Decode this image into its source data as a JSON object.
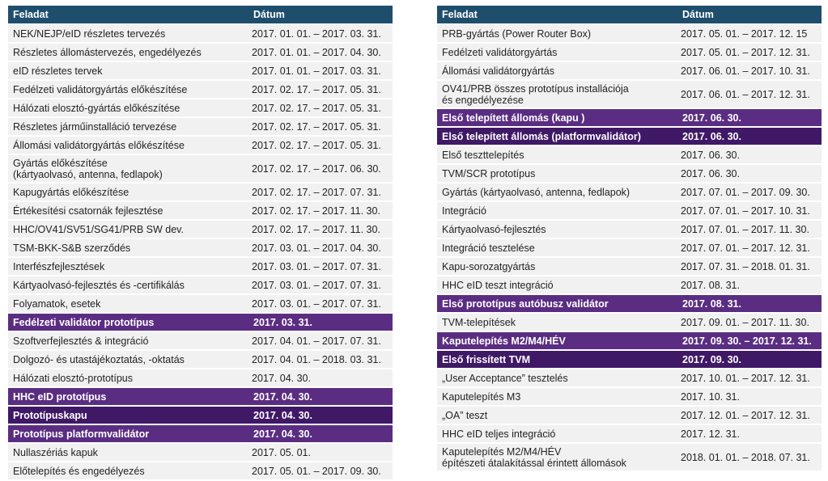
{
  "header": {
    "task": "Feladat",
    "date": "Dátum"
  },
  "colors": {
    "header_bg": "#1f4e6d",
    "milestone_bg": "#5a2d82",
    "milestone_dark_bg": "#3f1866",
    "row_bg": "#f1f1f1"
  },
  "left_rows": [
    {
      "task": "NEK/NEJP/eID részletes tervezés",
      "date": "2017. 01. 01. – 2017. 03. 31."
    },
    {
      "task": "Részletes állomástervezés, engedélyezés",
      "date": "2017. 01. 01. – 2017. 04. 30."
    },
    {
      "task": "eID részletes tervek",
      "date": "2017. 01. 01. – 2017. 03. 31."
    },
    {
      "task": "Fedélzeti validátorgyártás előkészítése",
      "date": "2017. 02. 17. – 2017. 05. 31."
    },
    {
      "task": "Hálózati elosztó-gyártás előkészítése",
      "date": "2017. 02. 17. – 2017. 05. 31."
    },
    {
      "task": "Részletes járműinstalláció tervezése",
      "date": "2017. 02. 17. – 2017. 05. 31."
    },
    {
      "task": "Állomási validátorgyártás előkészítése",
      "date": "2017. 02. 17. – 2017. 05. 31."
    },
    {
      "task": "Gyártás előkészítése",
      "task2": "(kártyaolvasó, antenna, fedlapok)",
      "date": "2017. 02. 17. – 2017. 06. 30."
    },
    {
      "task": "Kapugyártás előkészítése",
      "date": "2017. 02. 17. – 2017. 07. 31."
    },
    {
      "task": "Értékesítési csatornák fejlesztése",
      "date": "2017. 02. 17. – 2017. 11. 30."
    },
    {
      "task": "HHC/OV41/SV51/SG41/PRB SW dev.",
      "date": "2017. 02. 17. – 2017. 11. 30."
    },
    {
      "task": "TSM-BKK-S&B szerződés",
      "date": "2017. 03. 01. – 2017. 04. 30."
    },
    {
      "task": "Interfészfejlesztések",
      "date": "2017. 03. 01. – 2017. 07. 31."
    },
    {
      "task": "Kártyaolvasó-fejlesztés és -certifikálás",
      "date": "2017. 03. 01. – 2017. 07. 31."
    },
    {
      "task": "Folyamatok, esetek",
      "date": "2017. 03. 01. – 2017. 07. 31."
    },
    {
      "task": "Fedélzeti validátor prototípus",
      "date": "2017. 03. 31."
    },
    {
      "task": "Szoftverfejlesztés & integráció",
      "date": "2017. 04. 01. – 2017. 07. 31."
    },
    {
      "task": "Dolgozó- és utastájékoztatás, -oktatás",
      "date": "2017. 04. 01. – 2018. 03. 31."
    },
    {
      "task": "Hálózati elosztó-prototípus",
      "date": "2017. 04. 30."
    },
    {
      "task": "HHC eID prototípus",
      "date": "2017. 04. 30."
    },
    {
      "task": "Prototípuskapu",
      "date": "2017. 04. 30."
    },
    {
      "task": "Prototípus platformvalidátor",
      "date": "2017. 04. 30."
    },
    {
      "task": "Nullaszériás kapuk",
      "date": "2017. 05. 01."
    },
    {
      "task": "Előtelepítés és engedélyezés",
      "date": "2017. 05. 01. – 2017. 09. 30."
    }
  ],
  "right_rows": [
    {
      "task": "PRB-gyártás (Power Router Box)",
      "date": "2017. 05. 01. – 2017. 12. 15"
    },
    {
      "task": "Fedélzeti validátorgyártás",
      "date": "2017. 05. 01. – 2017. 12. 31."
    },
    {
      "task": "Állomási validátorgyártás",
      "date": "2017. 06. 01. – 2017. 10. 31."
    },
    {
      "task": "OV41/PRB összes prototípus installációja",
      "task2": "és engedélyezése",
      "date": "2017. 06. 01. – 2017. 12. 31."
    },
    {
      "task": "Első telepített állomás (kapu )",
      "date": "2017. 06. 30."
    },
    {
      "task": "Első telepített állomás (platformvalidátor)",
      "date": "2017. 06. 30."
    },
    {
      "task": "Első teszttelepítés",
      "date": "2017. 06. 30."
    },
    {
      "task": "TVM/SCR prototípus",
      "date": "2017. 06. 30."
    },
    {
      "task": "Gyártás (kártyaolvasó, antenna, fedlapok)",
      "date": "2017. 07. 01. – 2017. 09. 30."
    },
    {
      "task": "Integráció",
      "date": "2017. 07. 01. – 2017. 10. 31."
    },
    {
      "task": "Kártyaolvasó-fejlesztés",
      "date": "2017. 07. 01. – 2017. 11. 30."
    },
    {
      "task": "Integráció tesztelése",
      "date": "2017. 07. 01. – 2017. 12. 31."
    },
    {
      "task": "Kapu-sorozatgyártás",
      "date": "2017. 07. 31. – 2018. 01. 31."
    },
    {
      "task": "HHC eID teszt integráció",
      "date": "2017. 08. 31."
    },
    {
      "task": "Első prototípus autóbusz validátor",
      "date": "2017. 08. 31."
    },
    {
      "task": "TVM-telepítések",
      "date": "2017. 09. 01. – 2017. 11. 30."
    },
    {
      "task": "Kaputelepítés M2/M4/HÉV",
      "date": "2017. 09. 30. – 2017. 12. 31."
    },
    {
      "task": "Első frissített TVM",
      "date": "2017. 09. 30."
    },
    {
      "task": "„User Acceptance” tesztelés",
      "date": "2017. 10. 01. – 2017. 12. 31."
    },
    {
      "task": "Kaputelepítés M3",
      "date": "2017. 10. 31."
    },
    {
      "task": "„OA” teszt",
      "date": "2017. 12. 01. – 2017. 12. 31."
    },
    {
      "task": "HHC eID teljes integráció",
      "date": "2017. 12. 31."
    },
    {
      "task": "Kaputelepítés M2/M4/HÉV",
      "task2": "építészeti átalakítással érintett állomások",
      "date": "2018. 01. 01. – 2018. 07. 31."
    }
  ]
}
